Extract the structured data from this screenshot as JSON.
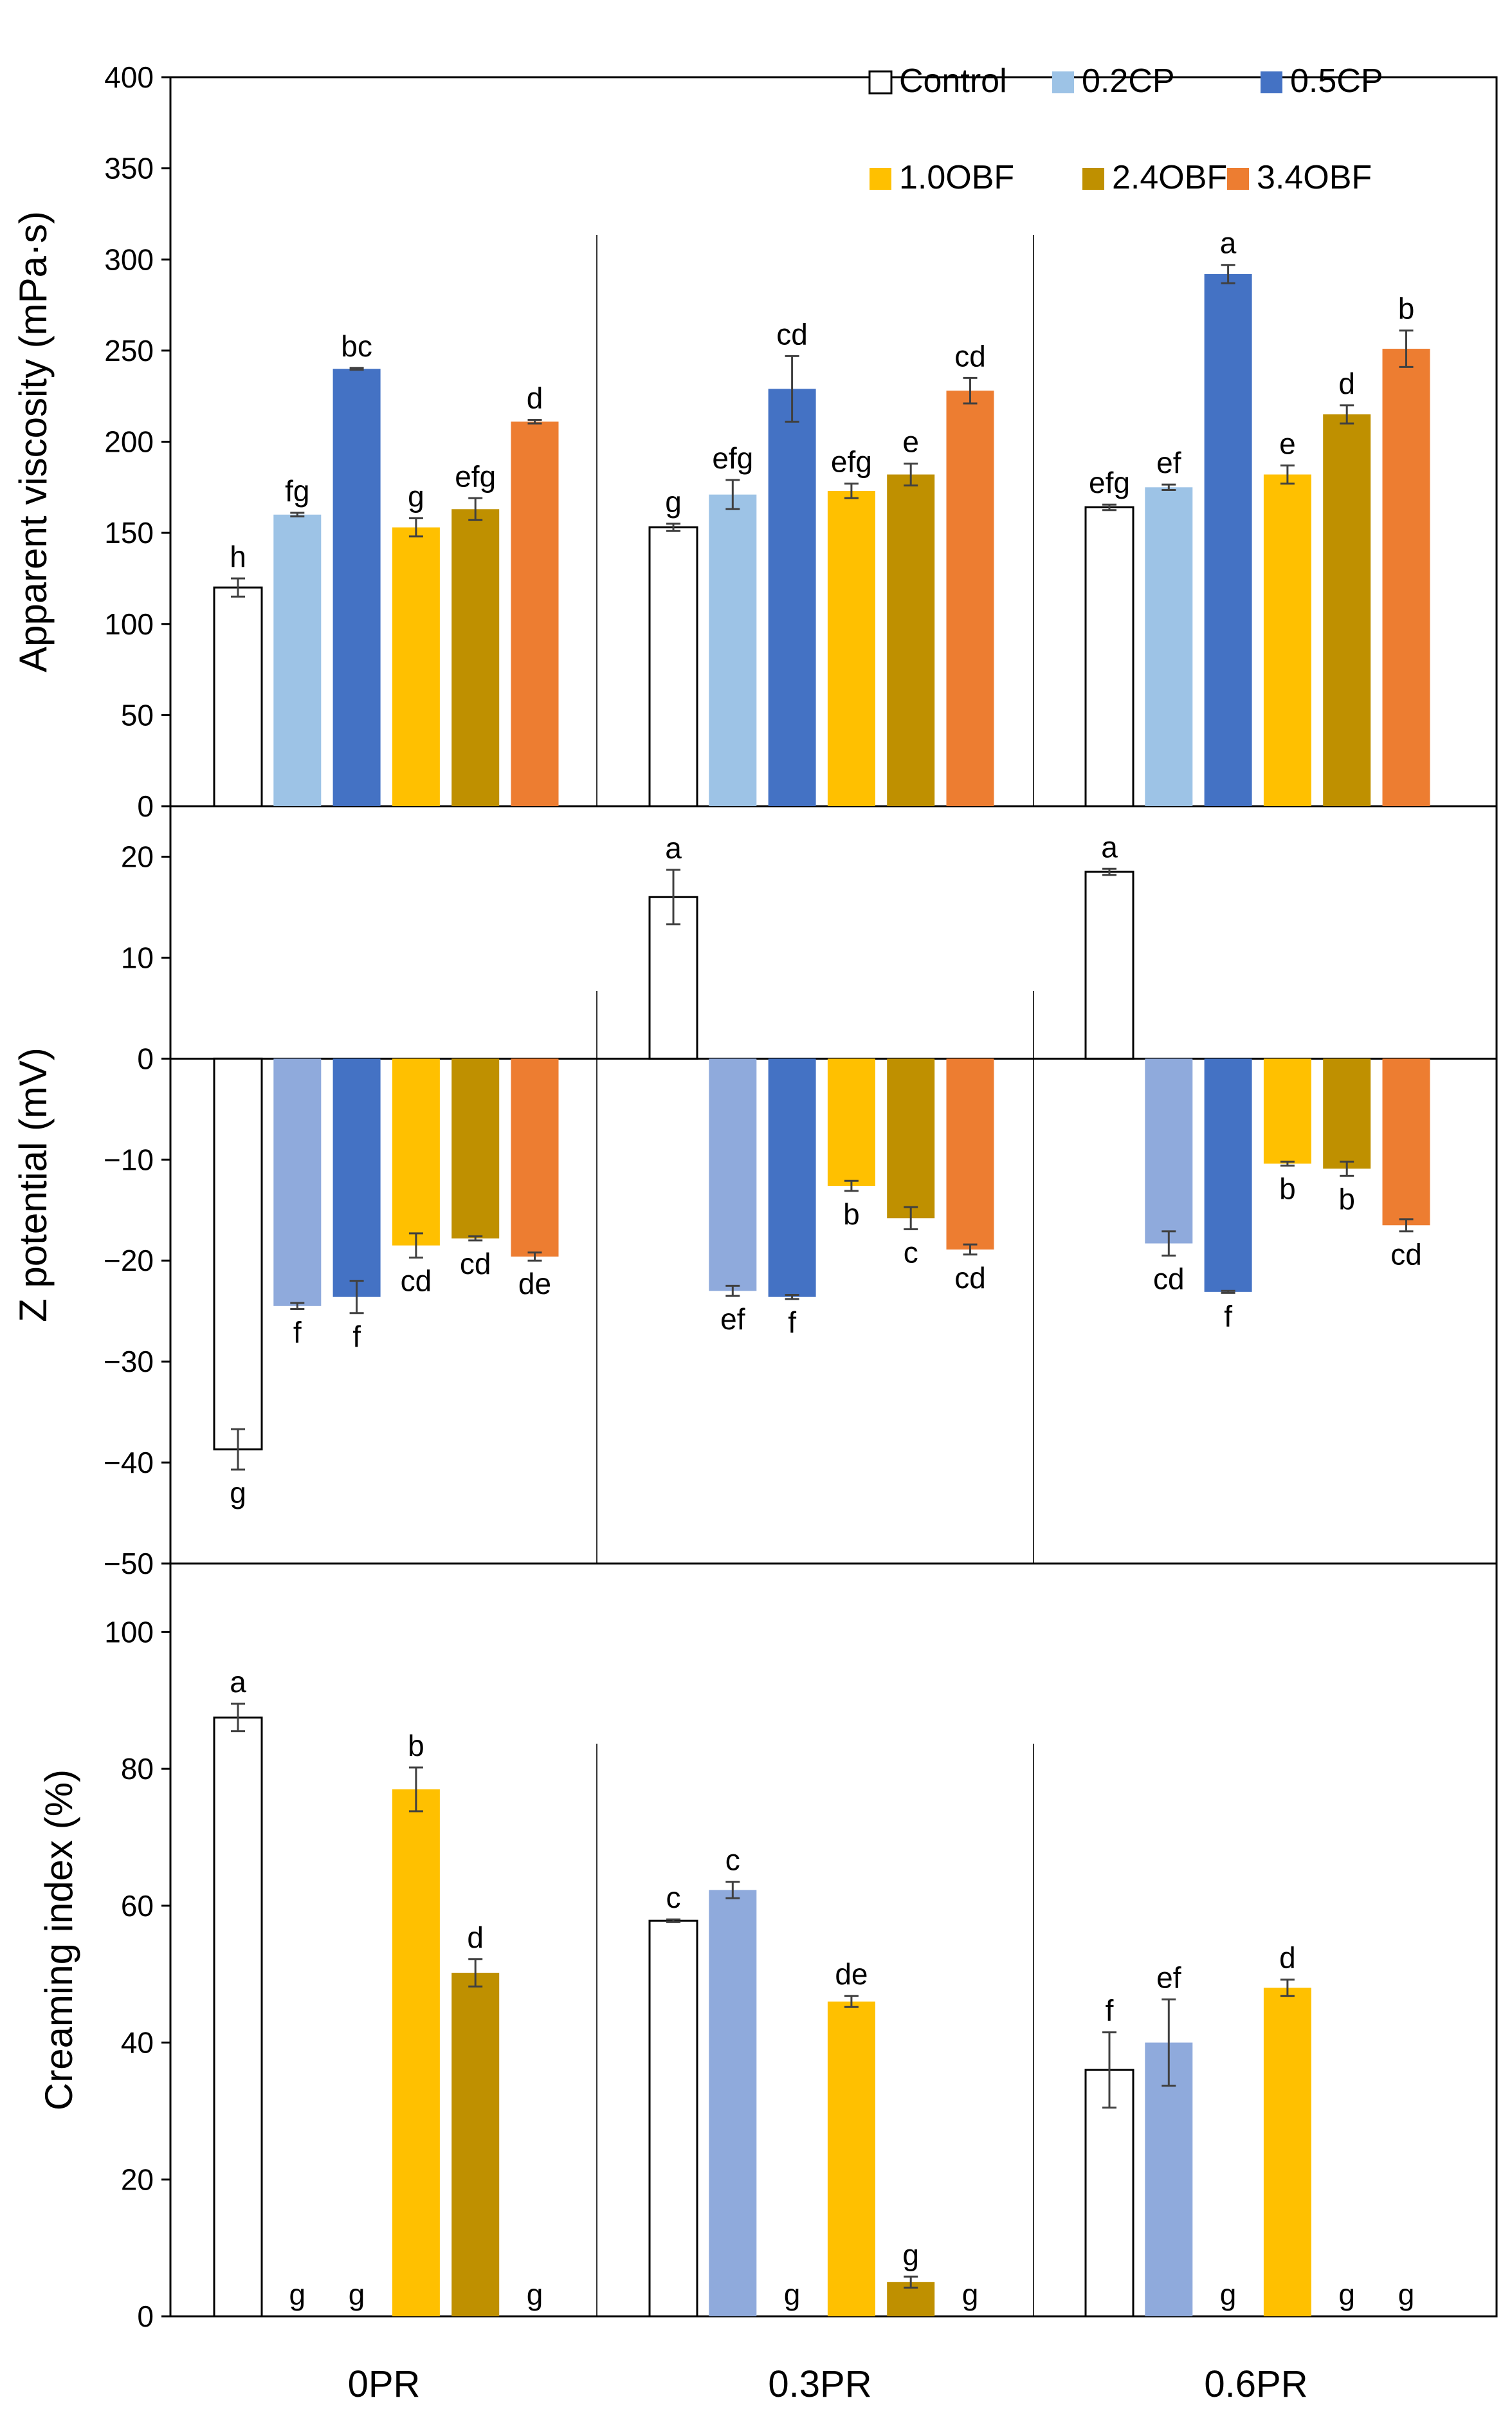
{
  "chart_data": [
    {
      "type": "bar",
      "title": "",
      "ylabel": "Apparent viscosity  (mPa·s)",
      "ylim": [
        0,
        400
      ],
      "yticks": [
        0,
        50,
        100,
        150,
        200,
        250,
        300,
        350,
        400
      ],
      "groups": [
        "0PR",
        "0.3PR",
        "0.6PR"
      ],
      "series": [
        {
          "name": "Control",
          "values": [
            120,
            153,
            164
          ],
          "errors": [
            5,
            2,
            1.5
          ],
          "letters": [
            "h",
            "g",
            "efg"
          ]
        },
        {
          "name": "0.2CP",
          "values": [
            160,
            171,
            175
          ],
          "errors": [
            1,
            8,
            1.5
          ],
          "letters": [
            "fg",
            "efg",
            "ef"
          ]
        },
        {
          "name": "0.5CP",
          "values": [
            240,
            229,
            292
          ],
          "errors": [
            0.5,
            18,
            5
          ],
          "letters": [
            "bc",
            "cd",
            "a"
          ]
        },
        {
          "name": "1.0OBF",
          "values": [
            153,
            173,
            182
          ],
          "errors": [
            5,
            4,
            5
          ],
          "letters": [
            "g",
            "efg",
            "e"
          ]
        },
        {
          "name": "2.4OBF",
          "values": [
            163,
            182,
            215
          ],
          "errors": [
            6,
            6,
            5
          ],
          "letters": [
            "efg",
            "e",
            "d"
          ]
        },
        {
          "name": "3.4OBF",
          "values": [
            211,
            228,
            251
          ],
          "errors": [
            1,
            7,
            10
          ],
          "letters": [
            "d",
            "cd",
            "b"
          ]
        }
      ]
    },
    {
      "type": "bar",
      "title": "",
      "ylabel": "Z potential  (mV)",
      "ylim": [
        -50,
        25
      ],
      "yticks": [
        -50,
        -40,
        -30,
        -20,
        -10,
        0,
        10,
        20
      ],
      "groups": [
        "0PR",
        "0.3PR",
        "0.6PR"
      ],
      "series": [
        {
          "name": "Control",
          "values": [
            -38.7,
            16.0,
            18.5
          ],
          "errors": [
            2,
            2.7,
            0.3
          ],
          "letters": [
            "g",
            "a",
            "a"
          ]
        },
        {
          "name": "0.2CP",
          "values": [
            -24.5,
            -23.0,
            -18.3
          ],
          "errors": [
            0.3,
            0.5,
            1.2
          ],
          "letters": [
            "f",
            "ef",
            "cd"
          ]
        },
        {
          "name": "0.5CP",
          "values": [
            -23.6,
            -23.6,
            -23.1
          ],
          "errors": [
            1.6,
            0.2,
            0.1
          ],
          "letters": [
            "f",
            "f",
            "f"
          ]
        },
        {
          "name": "1.0OBF",
          "values": [
            -18.5,
            -12.6,
            -10.4
          ],
          "errors": [
            1.2,
            0.5,
            0.2
          ],
          "letters": [
            "cd",
            "b",
            "b"
          ]
        },
        {
          "name": "2.4OBF",
          "values": [
            -17.8,
            -15.8,
            -10.9
          ],
          "errors": [
            0.2,
            1.1,
            0.7
          ],
          "letters": [
            "cd",
            "c",
            "b"
          ]
        },
        {
          "name": "3.4OBF",
          "values": [
            -19.6,
            -18.9,
            -16.5
          ],
          "errors": [
            0.4,
            0.5,
            0.6
          ],
          "letters": [
            "de",
            "cd",
            "cd"
          ]
        }
      ]
    },
    {
      "type": "bar",
      "title": "",
      "ylabel": "Creaming index (%)",
      "ylim": [
        0,
        110
      ],
      "yticks": [
        0,
        20,
        40,
        60,
        80,
        100
      ],
      "xlabel": "",
      "groups": [
        "0PR",
        "0.3PR",
        "0.6PR"
      ],
      "series": [
        {
          "name": "Control",
          "values": [
            87.5,
            57.8,
            36.0
          ],
          "errors": [
            2,
            0.2,
            5.5
          ],
          "letters": [
            "a",
            "c",
            "f"
          ]
        },
        {
          "name": "0.2CP",
          "values": [
            0,
            62.3,
            40.0
          ],
          "errors": [
            0,
            1.2,
            6.3
          ],
          "letters": [
            "g",
            "c",
            "ef"
          ]
        },
        {
          "name": "0.5CP",
          "values": [
            0,
            0,
            0
          ],
          "errors": [
            0,
            0,
            0
          ],
          "letters": [
            "g",
            "g",
            "g"
          ]
        },
        {
          "name": "1.0OBF",
          "values": [
            77.0,
            46.0,
            48.0
          ],
          "errors": [
            3.2,
            0.8,
            1.2
          ],
          "letters": [
            "b",
            "de",
            "d"
          ]
        },
        {
          "name": "2.4OBF",
          "values": [
            50.2,
            5.0,
            0
          ],
          "errors": [
            2,
            0.8,
            0
          ],
          "letters": [
            "d",
            "g",
            "g"
          ]
        },
        {
          "name": "3.4OBF",
          "values": [
            0,
            0,
            0
          ],
          "errors": [
            0,
            0,
            0
          ],
          "letters": [
            "g",
            "g",
            "g"
          ]
        }
      ]
    }
  ],
  "legend": [
    {
      "name": "Control",
      "color": "#ffffff"
    },
    {
      "name": "0.2CP",
      "color": "#9dc3e6"
    },
    {
      "name": "0.5CP",
      "color": "#4472c4"
    },
    {
      "name": "1.0OBF",
      "color": "#ffc000"
    },
    {
      "name": "2.4OBF",
      "color": "#bf9000"
    },
    {
      "name": "3.4OBF",
      "color": "#ed7d31"
    }
  ],
  "colors": {
    "zeta_0.2CP": "#8faadc",
    "ci_0.2CP": "#8faadc"
  }
}
